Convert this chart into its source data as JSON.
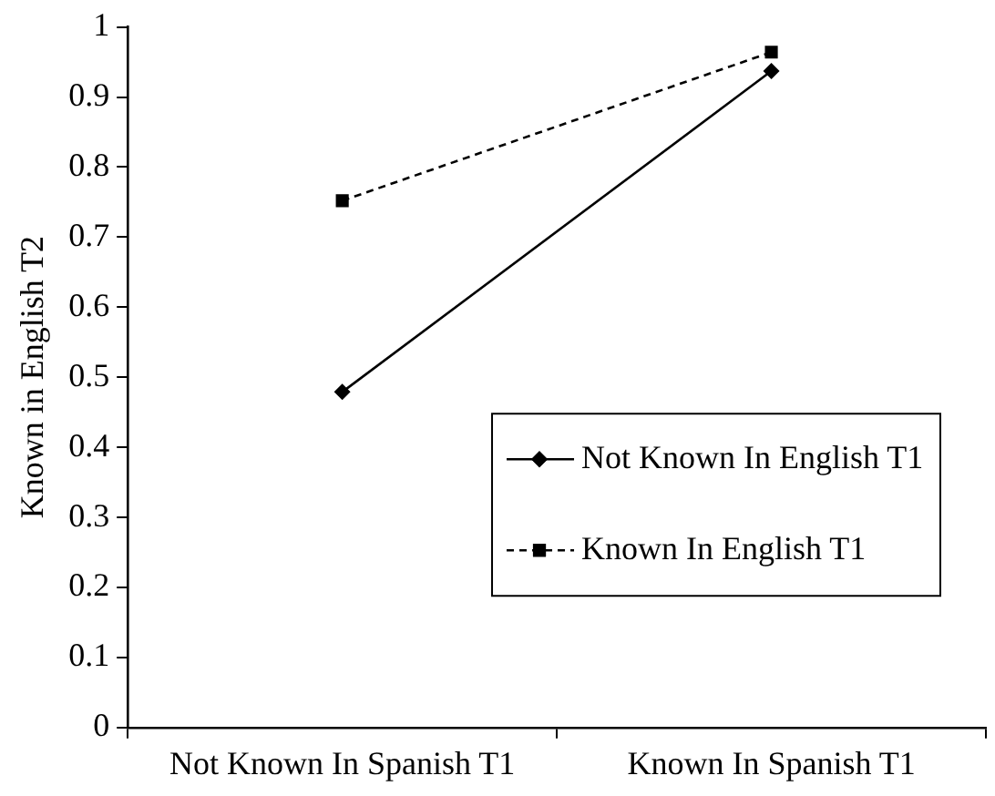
{
  "chart_data": {
    "type": "line",
    "ylabel": "Known in English T2",
    "categories": [
      "Not Known In Spanish T1",
      "Known In Spanish T1"
    ],
    "ylim": [
      0,
      1
    ],
    "yticks": [
      0,
      0.1,
      0.2,
      0.3,
      0.4,
      0.5,
      0.6,
      0.7,
      0.8,
      0.9,
      1
    ],
    "grid": false,
    "legend": "right",
    "series": [
      {
        "name": "Not Known In English T1",
        "color": "#000000",
        "marker": "diamond",
        "line_style": "solid",
        "values": [
          0.479,
          0.937
        ]
      },
      {
        "name": "Known In English T1",
        "color": "#000000",
        "marker": "square",
        "line_style": "dashed",
        "values": [
          0.752,
          0.964
        ]
      }
    ]
  }
}
